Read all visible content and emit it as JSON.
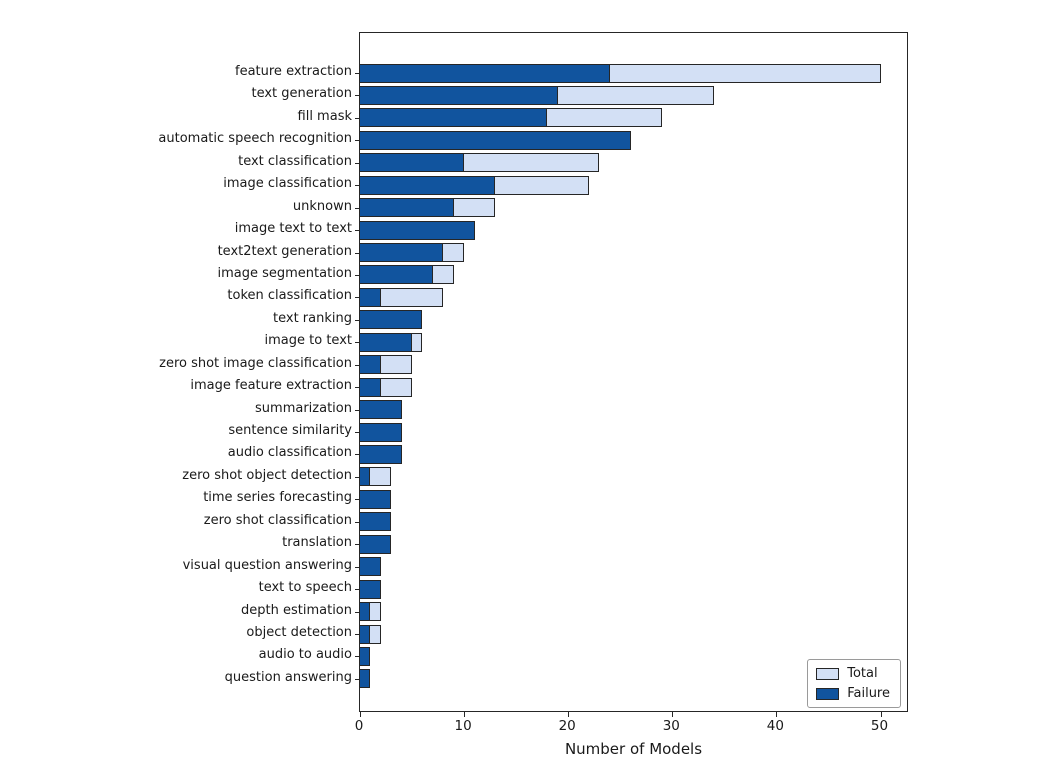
{
  "chart_data": {
    "type": "bar",
    "orientation": "horizontal",
    "title": "",
    "xlabel": "Number of Models",
    "ylabel": "",
    "xlim": [
      0,
      52.5
    ],
    "x_ticks": [
      0,
      10,
      20,
      30,
      40,
      50
    ],
    "grid": false,
    "legend_position": "lower right",
    "categories": [
      "feature extraction",
      "text generation",
      "fill mask",
      "automatic speech recognition",
      "text classification",
      "image classification",
      "unknown",
      "image text to text",
      "text2text generation",
      "image segmentation",
      "token classification",
      "text ranking",
      "image to text",
      "zero shot image classification",
      "image feature extraction",
      "summarization",
      "sentence similarity",
      "audio classification",
      "zero shot object detection",
      "time series forecasting",
      "zero shot classification",
      "translation",
      "visual question answering",
      "text to speech",
      "depth estimation",
      "object detection",
      "audio to audio",
      "question answering"
    ],
    "series": [
      {
        "name": "Total",
        "color": "#d3e0f5",
        "values": [
          50,
          34,
          29,
          26,
          23,
          22,
          13,
          11,
          10,
          9,
          8,
          6,
          6,
          5,
          5,
          4,
          4,
          4,
          3,
          3,
          3,
          3,
          2,
          2,
          2,
          2,
          1,
          1
        ]
      },
      {
        "name": "Failure",
        "color": "#11549e",
        "values": [
          24,
          19,
          18,
          26,
          10,
          13,
          9,
          11,
          8,
          7,
          2,
          6,
          5,
          2,
          2,
          4,
          4,
          4,
          1,
          3,
          3,
          3,
          2,
          2,
          1,
          1,
          1,
          1
        ]
      }
    ],
    "legend": {
      "entries": [
        {
          "label": "Total",
          "color": "#d3e0f5"
        },
        {
          "label": "Failure",
          "color": "#11549e"
        }
      ]
    }
  },
  "colors": {
    "total_fill": "#d3e0f5",
    "failure_fill": "#11549e",
    "bar_edge": "#262626",
    "axis": "#262626",
    "background": "#ffffff"
  }
}
